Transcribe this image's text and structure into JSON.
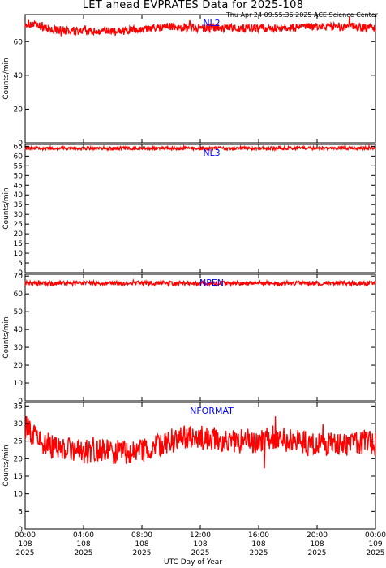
{
  "page": {
    "title": "LET ahead EVPRATES Data for 2025-108",
    "stamp": "Thu Apr 24 09:55:36 2025 ACE Science Center",
    "x_title": "UTC Day of Year"
  },
  "chart_data": [
    {
      "type": "line",
      "title": "NL2",
      "ylabel": "Counts/min",
      "ylim": [
        0,
        76
      ],
      "yticks": [
        0,
        20,
        40,
        60
      ],
      "series": [
        {
          "name": "NL2",
          "color": "#ff0000",
          "x": [
            0,
            2,
            4,
            6,
            8,
            10,
            12,
            14,
            16,
            18,
            20,
            22,
            24
          ],
          "values": [
            71,
            67,
            66,
            66,
            67,
            69,
            68,
            68,
            68,
            68,
            69,
            69,
            68
          ],
          "noise": 2.5
        }
      ]
    },
    {
      "type": "line",
      "title": "NL3",
      "ylabel": "Counts/min",
      "ylim": [
        0,
        66
      ],
      "yticks": [
        0,
        5,
        10,
        15,
        20,
        25,
        30,
        35,
        40,
        45,
        50,
        55,
        60,
        65
      ],
      "series": [
        {
          "name": "NL3",
          "color": "#ff0000",
          "x": [
            0,
            4,
            8,
            12,
            16,
            20,
            24
          ],
          "values": [
            64,
            64,
            64,
            64,
            64,
            64,
            64
          ],
          "noise": 0.8
        }
      ]
    },
    {
      "type": "line",
      "title": "NPEN",
      "ylabel": "Counts/min",
      "ylim": [
        0,
        71
      ],
      "yticks": [
        0,
        10,
        20,
        30,
        40,
        50,
        60,
        70
      ],
      "series": [
        {
          "name": "NPEN",
          "color": "#ff0000",
          "x": [
            0,
            4,
            8,
            12,
            16,
            20,
            24
          ],
          "values": [
            66,
            66,
            66,
            66,
            66,
            66,
            66
          ],
          "noise": 1.2
        }
      ]
    },
    {
      "type": "line",
      "title": "NFORMAT",
      "ylabel": "Counts/min",
      "ylim": [
        0,
        36
      ],
      "yticks": [
        0,
        5,
        10,
        15,
        20,
        25,
        30,
        35
      ],
      "series": [
        {
          "name": "NFORMAT",
          "color": "#ff0000",
          "x": [
            0,
            1,
            2,
            4,
            6,
            8,
            10,
            11,
            12,
            14,
            16,
            17,
            18,
            20,
            22,
            23,
            24
          ],
          "values": [
            29,
            25,
            23,
            22,
            22,
            22,
            25,
            26,
            26,
            25,
            25,
            26,
            25,
            24,
            24,
            25,
            24
          ],
          "noise": 3.5
        }
      ]
    }
  ],
  "x_axis": {
    "range": [
      0,
      24
    ],
    "ticks": [
      {
        "x": 0,
        "lines": [
          "00:00",
          "108",
          "2025"
        ]
      },
      {
        "x": 4,
        "lines": [
          "04:00",
          "108",
          "2025"
        ]
      },
      {
        "x": 8,
        "lines": [
          "08:00",
          "108",
          "2025"
        ]
      },
      {
        "x": 12,
        "lines": [
          "12:00",
          "108",
          "2025"
        ]
      },
      {
        "x": 16,
        "lines": [
          "16:00",
          "108",
          "2025"
        ]
      },
      {
        "x": 20,
        "lines": [
          "20:00",
          "108",
          "2025"
        ]
      },
      {
        "x": 24,
        "lines": [
          "00:00",
          "109",
          "2025"
        ]
      }
    ]
  }
}
